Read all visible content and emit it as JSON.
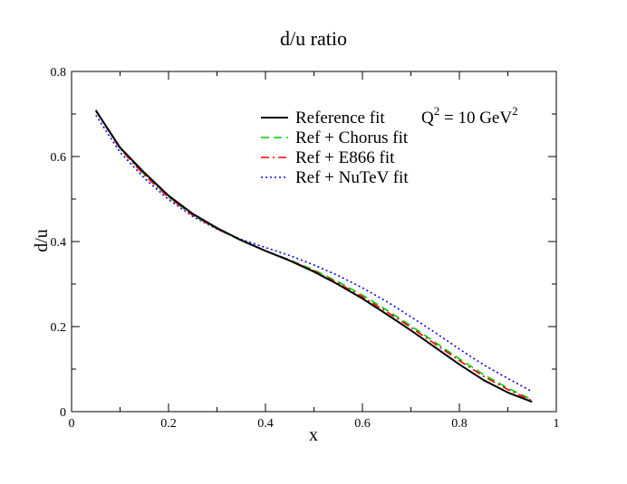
{
  "chart_data": {
    "type": "line",
    "title": "d/u ratio",
    "xlabel": "x",
    "ylabel": "d/u",
    "xlim": [
      0,
      1
    ],
    "ylim": [
      0,
      0.8
    ],
    "xticks": [
      "0",
      "0.2",
      "0.4",
      "0.6",
      "0.8",
      "1"
    ],
    "yticks": [
      "0",
      "0.2",
      "0.4",
      "0.6",
      "0.8"
    ],
    "grid": false,
    "legend_position": "top-right",
    "annotation": {
      "prefix": "Q",
      "exp1": "2",
      "middle": " = 10 GeV",
      "exp2": "2"
    },
    "series": [
      {
        "name": "Reference fit",
        "color": "#000000",
        "style": "solid",
        "x": [
          0.05,
          0.1,
          0.15,
          0.2,
          0.25,
          0.3,
          0.35,
          0.4,
          0.45,
          0.5,
          0.55,
          0.6,
          0.65,
          0.7,
          0.75,
          0.8,
          0.85,
          0.9,
          0.95
        ],
        "y": [
          0.708,
          0.621,
          0.562,
          0.508,
          0.465,
          0.432,
          0.403,
          0.378,
          0.355,
          0.329,
          0.299,
          0.266,
          0.229,
          0.191,
          0.151,
          0.111,
          0.074,
          0.045,
          0.023
        ]
      },
      {
        "name": "Ref + Chorus fit",
        "color": "#00cc00",
        "style": "dashed",
        "x": [
          0.05,
          0.1,
          0.15,
          0.2,
          0.25,
          0.3,
          0.35,
          0.4,
          0.45,
          0.5,
          0.55,
          0.6,
          0.65,
          0.7,
          0.75,
          0.8,
          0.85,
          0.9,
          0.95
        ],
        "y": [
          0.71,
          0.619,
          0.558,
          0.505,
          0.462,
          0.43,
          0.402,
          0.378,
          0.357,
          0.333,
          0.305,
          0.274,
          0.239,
          0.202,
          0.163,
          0.124,
          0.087,
          0.055,
          0.028
        ]
      },
      {
        "name": "Ref + E866 fit",
        "color": "#ff0000",
        "style": "dashdot",
        "x": [
          0.05,
          0.1,
          0.15,
          0.2,
          0.25,
          0.3,
          0.35,
          0.4,
          0.45,
          0.5,
          0.55,
          0.6,
          0.65,
          0.7,
          0.75,
          0.8,
          0.85,
          0.9,
          0.95
        ],
        "y": [
          0.707,
          0.618,
          0.556,
          0.504,
          0.462,
          0.43,
          0.403,
          0.378,
          0.356,
          0.331,
          0.302,
          0.27,
          0.235,
          0.198,
          0.159,
          0.12,
          0.083,
          0.052,
          0.026
        ]
      },
      {
        "name": "Ref + NuTeV fit",
        "color": "#0000ff",
        "style": "dotted",
        "x": [
          0.05,
          0.1,
          0.15,
          0.2,
          0.25,
          0.3,
          0.35,
          0.4,
          0.45,
          0.5,
          0.55,
          0.6,
          0.65,
          0.7,
          0.75,
          0.8,
          0.85,
          0.9,
          0.95
        ],
        "y": [
          0.697,
          0.61,
          0.549,
          0.499,
          0.459,
          0.429,
          0.405,
          0.386,
          0.367,
          0.345,
          0.32,
          0.291,
          0.259,
          0.223,
          0.186,
          0.147,
          0.11,
          0.078,
          0.047
        ]
      }
    ]
  }
}
